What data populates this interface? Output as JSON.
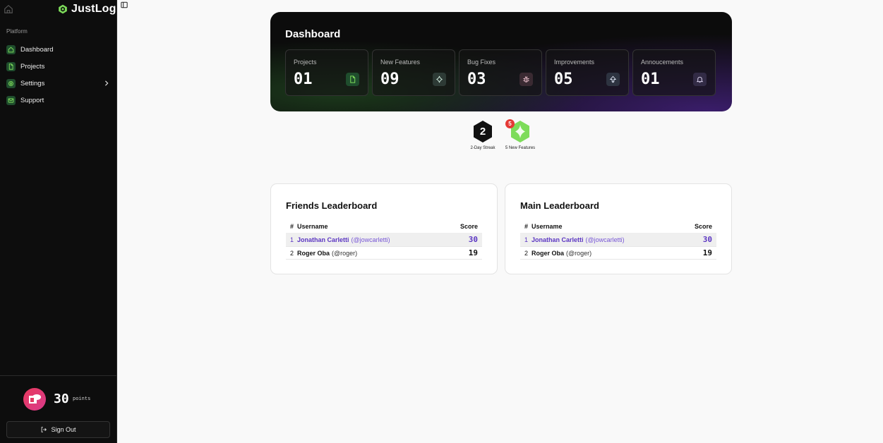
{
  "brand": {
    "name": "JustLog"
  },
  "sidebar": {
    "section_label": "Platform",
    "items": [
      {
        "label": "Dashboard",
        "icon": "home-icon"
      },
      {
        "label": "Projects",
        "icon": "file-icon"
      },
      {
        "label": "Settings",
        "icon": "gear-icon"
      },
      {
        "label": "Support",
        "icon": "mail-icon"
      }
    ],
    "points_value": "30",
    "points_label": "points",
    "signout_label": "Sign Out"
  },
  "dashboard": {
    "title": "Dashboard",
    "stats": [
      {
        "label": "Projects",
        "value": "01",
        "icon": "file-icon",
        "icon_bg": "#1f4d2d",
        "icon_color": "#7ddc5a"
      },
      {
        "label": "New Features",
        "value": "09",
        "icon": "sparkle-icon",
        "icon_bg": "#2d3a35",
        "icon_color": "#d9f5e6"
      },
      {
        "label": "Bug Fixes",
        "value": "03",
        "icon": "bug-icon",
        "icon_bg": "#3a2a32",
        "icon_color": "#f2c6d2"
      },
      {
        "label": "Improvements",
        "value": "05",
        "icon": "arrow-up-icon",
        "icon_bg": "#2d3340",
        "icon_color": "#dfe6f5"
      },
      {
        "label": "Annoucements",
        "value": "01",
        "icon": "bell-icon",
        "icon_bg": "#322b45",
        "icon_color": "#e4dcf7"
      }
    ]
  },
  "badges": [
    {
      "value": "2",
      "label": "2-Day Streak"
    },
    {
      "count": "5",
      "label": "5 New Features"
    }
  ],
  "friends_board": {
    "title": "Friends Leaderboard",
    "headers": {
      "rank": "#",
      "user": "Username",
      "score": "Score"
    },
    "rows": [
      {
        "rank": "1",
        "name": "Jonathan Carletti",
        "handle": "(@jowcarletti)",
        "score": "30"
      },
      {
        "rank": "2",
        "name": "Roger Oba",
        "handle": "(@roger)",
        "score": "19"
      }
    ]
  },
  "main_board": {
    "title": "Main Leaderboard",
    "headers": {
      "rank": "#",
      "user": "Username",
      "score": "Score"
    },
    "rows": [
      {
        "rank": "1",
        "name": "Jonathan Carletti",
        "handle": "(@jowcarletti)",
        "score": "30"
      },
      {
        "rank": "2",
        "name": "Roger Oba",
        "handle": "(@roger)",
        "score": "19"
      }
    ]
  },
  "colors": {
    "accent_green": "#7ddc5a",
    "accent_purple": "#5b36c2"
  }
}
